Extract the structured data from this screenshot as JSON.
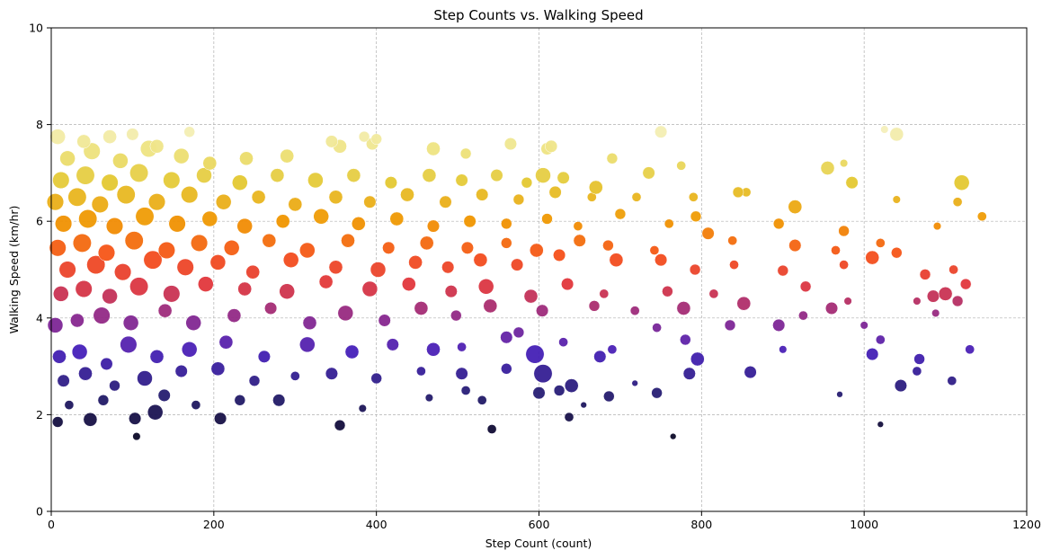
{
  "chart_data": {
    "type": "scatter",
    "title": "Step Counts vs. Walking Speed",
    "xlabel": "Step Count (count)",
    "ylabel": "Walking Speed (km/hr)",
    "xlim": [
      0,
      1200
    ],
    "ylim": [
      0,
      10
    ],
    "xticks": [
      0,
      200,
      400,
      600,
      800,
      1000,
      1200
    ],
    "yticks": [
      0,
      2,
      4,
      6,
      8,
      10
    ],
    "grid": true,
    "grid_style": "dashed",
    "legend": "none",
    "color_encoding": "walking speed (inferno/plasma-like: dark navy at low speed, purple, red, orange, yellow, pale yellow at high speed)",
    "size_encoding": "varies per point",
    "colors": {
      "low": "#0b0824",
      "mid_low": "#4a1fb0",
      "mid": "#9a2b80",
      "mid_high": "#f03a2a",
      "high": "#f0a000",
      "top": "#f3efb0",
      "grid": "#b0b0b0"
    },
    "points": [
      [
        8,
        1.85,
        7
      ],
      [
        48,
        1.9,
        9
      ],
      [
        103,
        1.92,
        8
      ],
      [
        128,
        2.05,
        10
      ],
      [
        208,
        1.92,
        8
      ],
      [
        355,
        1.78,
        7
      ],
      [
        542,
        1.7,
        6
      ],
      [
        765,
        1.55,
        4
      ],
      [
        1020,
        1.8,
        4
      ],
      [
        105,
        1.55,
        5
      ],
      [
        22,
        2.2,
        6
      ],
      [
        64,
        2.3,
        7
      ],
      [
        139,
        2.4,
        8
      ],
      [
        178,
        2.2,
        6
      ],
      [
        232,
        2.3,
        7
      ],
      [
        280,
        2.3,
        8
      ],
      [
        383,
        2.13,
        5
      ],
      [
        465,
        2.35,
        5
      ],
      [
        510,
        2.5,
        6
      ],
      [
        530,
        2.3,
        6
      ],
      [
        600,
        2.45,
        8
      ],
      [
        625,
        2.5,
        7
      ],
      [
        640,
        2.6,
        9
      ],
      [
        686,
        2.38,
        7
      ],
      [
        745,
        2.45,
        7
      ],
      [
        970,
        2.42,
        4
      ],
      [
        1045,
        2.6,
        8
      ],
      [
        1108,
        2.7,
        6
      ],
      [
        637,
        1.95,
        6
      ],
      [
        655,
        2.2,
        4
      ],
      [
        15,
        2.7,
        8
      ],
      [
        42,
        2.85,
        9
      ],
      [
        78,
        2.6,
        7
      ],
      [
        115,
        2.75,
        10
      ],
      [
        160,
        2.9,
        8
      ],
      [
        205,
        2.95,
        9
      ],
      [
        250,
        2.7,
        7
      ],
      [
        300,
        2.8,
        6
      ],
      [
        345,
        2.85,
        8
      ],
      [
        400,
        2.75,
        7
      ],
      [
        455,
        2.9,
        6
      ],
      [
        505,
        2.85,
        8
      ],
      [
        560,
        2.95,
        7
      ],
      [
        605,
        2.85,
        12
      ],
      [
        675,
        3.2,
        8
      ],
      [
        718,
        2.65,
        4
      ],
      [
        785,
        2.85,
        8
      ],
      [
        795,
        3.15,
        9
      ],
      [
        860,
        2.88,
        8
      ],
      [
        1065,
        2.9,
        6
      ],
      [
        10,
        3.2,
        9
      ],
      [
        35,
        3.3,
        10
      ],
      [
        68,
        3.05,
        8
      ],
      [
        95,
        3.45,
        11
      ],
      [
        130,
        3.2,
        9
      ],
      [
        170,
        3.35,
        10
      ],
      [
        215,
        3.5,
        9
      ],
      [
        262,
        3.2,
        8
      ],
      [
        315,
        3.45,
        10
      ],
      [
        370,
        3.3,
        9
      ],
      [
        420,
        3.45,
        8
      ],
      [
        470,
        3.35,
        9
      ],
      [
        505,
        3.4,
        6
      ],
      [
        560,
        3.6,
        8
      ],
      [
        595,
        3.25,
        12
      ],
      [
        630,
        3.5,
        6
      ],
      [
        690,
        3.35,
        6
      ],
      [
        780,
        3.55,
        7
      ],
      [
        900,
        3.35,
        5
      ],
      [
        1010,
        3.25,
        8
      ],
      [
        1020,
        3.55,
        6
      ],
      [
        1068,
        3.15,
        7
      ],
      [
        1130,
        3.35,
        6
      ],
      [
        835,
        3.85,
        7
      ],
      [
        895,
        3.85,
        8
      ],
      [
        960,
        4.2,
        8
      ],
      [
        980,
        4.35,
        5
      ],
      [
        1000,
        3.85,
        5
      ],
      [
        745,
        3.8,
        6
      ],
      [
        575,
        3.7,
        7
      ],
      [
        5,
        3.85,
        10
      ],
      [
        32,
        3.95,
        9
      ],
      [
        62,
        4.05,
        11
      ],
      [
        98,
        3.9,
        10
      ],
      [
        140,
        4.15,
        9
      ],
      [
        175,
        3.9,
        10
      ],
      [
        225,
        4.05,
        9
      ],
      [
        270,
        4.2,
        8
      ],
      [
        318,
        3.9,
        9
      ],
      [
        362,
        4.1,
        10
      ],
      [
        410,
        3.95,
        8
      ],
      [
        455,
        4.2,
        9
      ],
      [
        498,
        4.05,
        7
      ],
      [
        540,
        4.25,
        9
      ],
      [
        604,
        4.15,
        8
      ],
      [
        668,
        4.25,
        7
      ],
      [
        718,
        4.15,
        6
      ],
      [
        778,
        4.2,
        9
      ],
      [
        852,
        4.3,
        9
      ],
      [
        925,
        4.05,
        6
      ],
      [
        1085,
        4.45,
        8
      ],
      [
        1100,
        4.5,
        9
      ],
      [
        1115,
        4.35,
        7
      ],
      [
        1088,
        4.1,
        5
      ],
      [
        1065,
        4.35,
        5
      ],
      [
        12,
        4.5,
        10
      ],
      [
        40,
        4.6,
        11
      ],
      [
        72,
        4.45,
        10
      ],
      [
        108,
        4.65,
        12
      ],
      [
        148,
        4.5,
        11
      ],
      [
        190,
        4.7,
        10
      ],
      [
        238,
        4.6,
        9
      ],
      [
        290,
        4.55,
        10
      ],
      [
        338,
        4.75,
        9
      ],
      [
        392,
        4.6,
        10
      ],
      [
        440,
        4.7,
        9
      ],
      [
        492,
        4.55,
        8
      ],
      [
        535,
        4.65,
        10
      ],
      [
        590,
        4.45,
        9
      ],
      [
        635,
        4.7,
        8
      ],
      [
        680,
        4.5,
        6
      ],
      [
        758,
        4.55,
        7
      ],
      [
        815,
        4.5,
        6
      ],
      [
        928,
        4.65,
        7
      ],
      [
        1125,
        4.7,
        7
      ],
      [
        20,
        5.0,
        11
      ],
      [
        55,
        5.1,
        12
      ],
      [
        88,
        4.95,
        11
      ],
      [
        125,
        5.2,
        12
      ],
      [
        165,
        5.05,
        11
      ],
      [
        205,
        5.15,
        10
      ],
      [
        248,
        4.95,
        9
      ],
      [
        295,
        5.2,
        10
      ],
      [
        350,
        5.05,
        9
      ],
      [
        402,
        5.0,
        10
      ],
      [
        448,
        5.15,
        9
      ],
      [
        488,
        5.05,
        8
      ],
      [
        528,
        5.2,
        9
      ],
      [
        573,
        5.1,
        8
      ],
      [
        625,
        5.3,
        8
      ],
      [
        695,
        5.2,
        9
      ],
      [
        750,
        5.2,
        8
      ],
      [
        792,
        5.0,
        7
      ],
      [
        840,
        5.1,
        6
      ],
      [
        900,
        4.98,
        7
      ],
      [
        975,
        5.1,
        6
      ],
      [
        1010,
        5.25,
        9
      ],
      [
        1040,
        5.35,
        7
      ],
      [
        1075,
        4.9,
        7
      ],
      [
        1110,
        5.0,
        6
      ],
      [
        8,
        5.45,
        11
      ],
      [
        38,
        5.55,
        12
      ],
      [
        68,
        5.35,
        11
      ],
      [
        102,
        5.6,
        12
      ],
      [
        142,
        5.4,
        11
      ],
      [
        182,
        5.55,
        11
      ],
      [
        222,
        5.45,
        10
      ],
      [
        268,
        5.6,
        9
      ],
      [
        315,
        5.4,
        10
      ],
      [
        365,
        5.6,
        9
      ],
      [
        415,
        5.45,
        8
      ],
      [
        462,
        5.55,
        9
      ],
      [
        512,
        5.45,
        8
      ],
      [
        560,
        5.55,
        7
      ],
      [
        597,
        5.4,
        9
      ],
      [
        650,
        5.6,
        8
      ],
      [
        685,
        5.5,
        7
      ],
      [
        742,
        5.4,
        6
      ],
      [
        808,
        5.75,
        8
      ],
      [
        838,
        5.6,
        6
      ],
      [
        915,
        5.5,
        8
      ],
      [
        965,
        5.4,
        6
      ],
      [
        1020,
        5.55,
        6
      ],
      [
        15,
        5.95,
        11
      ],
      [
        45,
        6.05,
        12
      ],
      [
        78,
        5.9,
        11
      ],
      [
        115,
        6.1,
        12
      ],
      [
        155,
        5.95,
        11
      ],
      [
        195,
        6.05,
        10
      ],
      [
        238,
        5.9,
        10
      ],
      [
        285,
        6.0,
        9
      ],
      [
        332,
        6.1,
        10
      ],
      [
        378,
        5.95,
        9
      ],
      [
        425,
        6.05,
        9
      ],
      [
        470,
        5.9,
        8
      ],
      [
        515,
        6.0,
        8
      ],
      [
        560,
        5.95,
        7
      ],
      [
        610,
        6.05,
        7
      ],
      [
        648,
        5.9,
        6
      ],
      [
        700,
        6.15,
        7
      ],
      [
        760,
        5.95,
        6
      ],
      [
        793,
        6.1,
        7
      ],
      [
        895,
        5.95,
        7
      ],
      [
        975,
        5.8,
        7
      ],
      [
        1090,
        5.9,
        5
      ],
      [
        1145,
        6.1,
        6
      ],
      [
        5,
        6.4,
        11
      ],
      [
        32,
        6.5,
        12
      ],
      [
        60,
        6.35,
        11
      ],
      [
        92,
        6.55,
        12
      ],
      [
        130,
        6.4,
        11
      ],
      [
        170,
        6.55,
        11
      ],
      [
        212,
        6.4,
        10
      ],
      [
        255,
        6.5,
        9
      ],
      [
        300,
        6.35,
        9
      ],
      [
        350,
        6.5,
        9
      ],
      [
        392,
        6.4,
        8
      ],
      [
        438,
        6.55,
        9
      ],
      [
        485,
        6.4,
        8
      ],
      [
        530,
        6.55,
        8
      ],
      [
        575,
        6.45,
        7
      ],
      [
        620,
        6.6,
        8
      ],
      [
        665,
        6.5,
        6
      ],
      [
        720,
        6.5,
        6
      ],
      [
        790,
        6.5,
        6
      ],
      [
        855,
        6.6,
        6
      ],
      [
        915,
        6.3,
        9
      ],
      [
        1040,
        6.45,
        5
      ],
      [
        1115,
        6.4,
        6
      ],
      [
        12,
        6.85,
        11
      ],
      [
        42,
        6.95,
        12
      ],
      [
        72,
        6.8,
        11
      ],
      [
        108,
        7.0,
        12
      ],
      [
        148,
        6.85,
        11
      ],
      [
        188,
        6.95,
        10
      ],
      [
        232,
        6.8,
        10
      ],
      [
        278,
        6.95,
        9
      ],
      [
        325,
        6.85,
        10
      ],
      [
        372,
        6.95,
        9
      ],
      [
        418,
        6.8,
        8
      ],
      [
        465,
        6.95,
        9
      ],
      [
        505,
        6.85,
        8
      ],
      [
        548,
        6.95,
        8
      ],
      [
        585,
        6.8,
        7
      ],
      [
        605,
        6.95,
        10
      ],
      [
        630,
        6.9,
        8
      ],
      [
        670,
        6.7,
        9
      ],
      [
        735,
        7.0,
        8
      ],
      [
        845,
        6.6,
        7
      ],
      [
        985,
        6.8,
        8
      ],
      [
        1120,
        6.8,
        10
      ],
      [
        20,
        7.3,
        10
      ],
      [
        50,
        7.45,
        11
      ],
      [
        85,
        7.25,
        10
      ],
      [
        120,
        7.5,
        11
      ],
      [
        160,
        7.35,
        10
      ],
      [
        195,
        7.2,
        9
      ],
      [
        240,
        7.3,
        9
      ],
      [
        290,
        7.35,
        9
      ],
      [
        355,
        7.55,
        9
      ],
      [
        395,
        7.6,
        8
      ],
      [
        470,
        7.5,
        9
      ],
      [
        510,
        7.4,
        7
      ],
      [
        565,
        7.6,
        8
      ],
      [
        610,
        7.5,
        8
      ],
      [
        690,
        7.3,
        7
      ],
      [
        775,
        7.15,
        6
      ],
      [
        955,
        7.1,
        9
      ],
      [
        975,
        7.2,
        5
      ],
      [
        8,
        7.75,
        10
      ],
      [
        40,
        7.65,
        9
      ],
      [
        72,
        7.75,
        9
      ],
      [
        100,
        7.8,
        8
      ],
      [
        130,
        7.55,
        9
      ],
      [
        170,
        7.85,
        7
      ],
      [
        345,
        7.65,
        8
      ],
      [
        385,
        7.75,
        7
      ],
      [
        400,
        7.7,
        7
      ],
      [
        615,
        7.55,
        8
      ],
      [
        750,
        7.85,
        8
      ],
      [
        1040,
        7.8,
        9
      ],
      [
        1025,
        7.9,
        5
      ]
    ]
  }
}
